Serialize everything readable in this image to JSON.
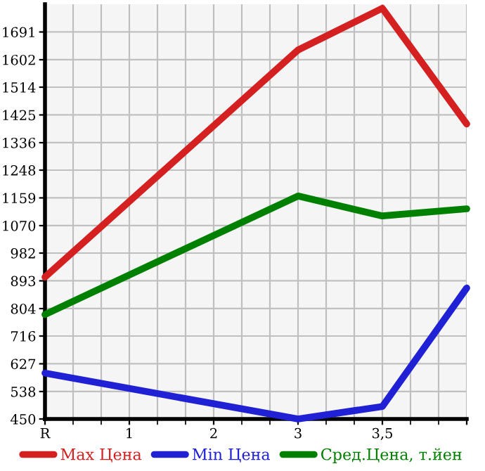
{
  "chart_data": {
    "type": "line",
    "categories": [
      "R",
      "1",
      "2",
      "3",
      "3,5",
      null
    ],
    "series": [
      {
        "name": "Max Цена",
        "color": "#d42020",
        "values": [
          905,
          null,
          null,
          1633,
          1767,
          1396
        ]
      },
      {
        "name": "Min Цена",
        "color": "#2020d4",
        "values": [
          597,
          null,
          null,
          450,
          490,
          870
        ]
      },
      {
        "name": "Сред.Цена, т.йен",
        "color": "#008000",
        "values": [
          785,
          null,
          null,
          1165,
          1101,
          1124
        ]
      }
    ],
    "ylim": [
      450,
      1780
    ],
    "yticks": [
      450,
      538,
      627,
      716,
      804,
      893,
      982,
      1070,
      1159,
      1248,
      1336,
      1425,
      1514,
      1602,
      1691
    ],
    "grid": true,
    "legend": "bottom",
    "marker": "none",
    "line_style": "solid"
  }
}
